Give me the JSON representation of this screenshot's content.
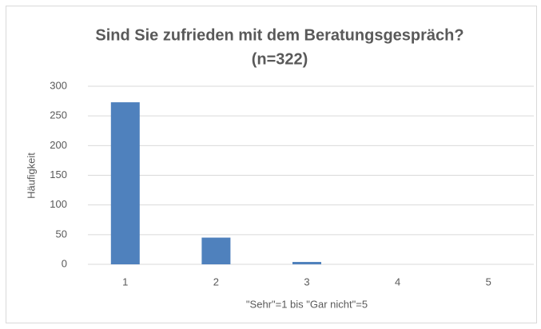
{
  "chart_data": {
    "type": "bar",
    "title": [
      "Sind Sie zufrieden mit dem Beratungsgespräch?",
      "(n=322)"
    ],
    "xlabel": "\"Sehr\"=1 bis \"Gar nicht\"=5",
    "ylabel": "Häufigkeit",
    "categories": [
      "1",
      "2",
      "3",
      "4",
      "5"
    ],
    "values": [
      273,
      45,
      4,
      0,
      0
    ],
    "color": "#4f81bd",
    "ylim": [
      0,
      300
    ],
    "yticks": [
      0,
      50,
      100,
      150,
      200,
      250,
      300
    ],
    "grid": true
  }
}
